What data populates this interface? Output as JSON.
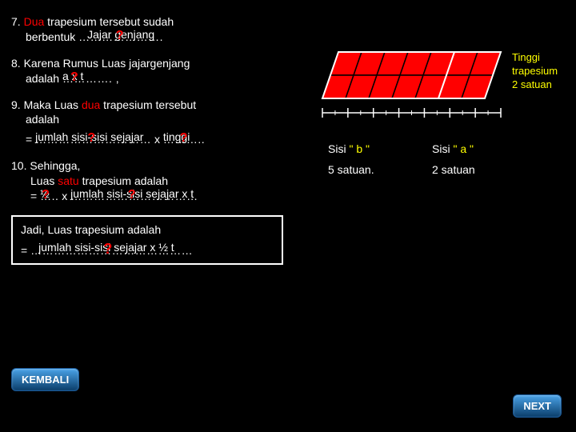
{
  "q7": {
    "prefix": "7. ",
    "dua": "Dua",
    "text1": " trapesium tersebut sudah",
    "text2": "berbentuk ",
    "dots": "………………….",
    "answer": "Jajar genjang",
    "qmark": "?"
  },
  "q8": {
    "line1": "8. Karena Rumus Luas jajargenjang",
    "line2a": "adalah ",
    "dots": "…………. ,",
    "answer": "a x t",
    "qmark": "?"
  },
  "q9": {
    "line1a": "9. Maka Luas ",
    "dua": "dua",
    "line1b": " trapesium tersebut",
    "line2": "adalah",
    "eq": "= ",
    "dots1": "…………………………",
    "ans1": "jumlah sisi-sisi sejajar",
    "q1": "?",
    "x": " x ",
    "dots2": "………..",
    "ans2": "tinggi",
    "q2": "?"
  },
  "q10": {
    "line1": "10. Sehingga,",
    "line2a": "Luas ",
    "satu": "satu",
    "line2b": " trapesium adalah",
    "eq": "= ",
    "dots1": "…..",
    "ans1": "½",
    "q1": "?",
    "x": " x ",
    "dots2": "……………………………",
    "ans2": "jumlah sisi-sisi sejajar x t",
    "q2": "?"
  },
  "final": {
    "title": "Jadi, Luas trapesium adalah",
    "eq": "= ",
    "dots": "……………………………………",
    "answer": "jumlah sisi-sisi sejajar x ½ t",
    "qmark": "?"
  },
  "buttons": {
    "back": "KEMBALI",
    "next": "NEXT"
  },
  "diagram": {
    "tinggi": "Tinggi\ntrapesium\n2 satuan",
    "sisi_b": "Sisi \" b \"",
    "sisi_a": "Sisi \" a \"",
    "val_b": "5 satuan.",
    "val_a": "2 satuan",
    "grid": {
      "cols": 7,
      "rows": 2,
      "cell": 29,
      "shear": 20,
      "stroke": "#000000",
      "fill": "#ff0000",
      "diag": "#ffffff"
    },
    "ruler": {
      "major_ticks": 8,
      "color": "#ffffff"
    }
  }
}
